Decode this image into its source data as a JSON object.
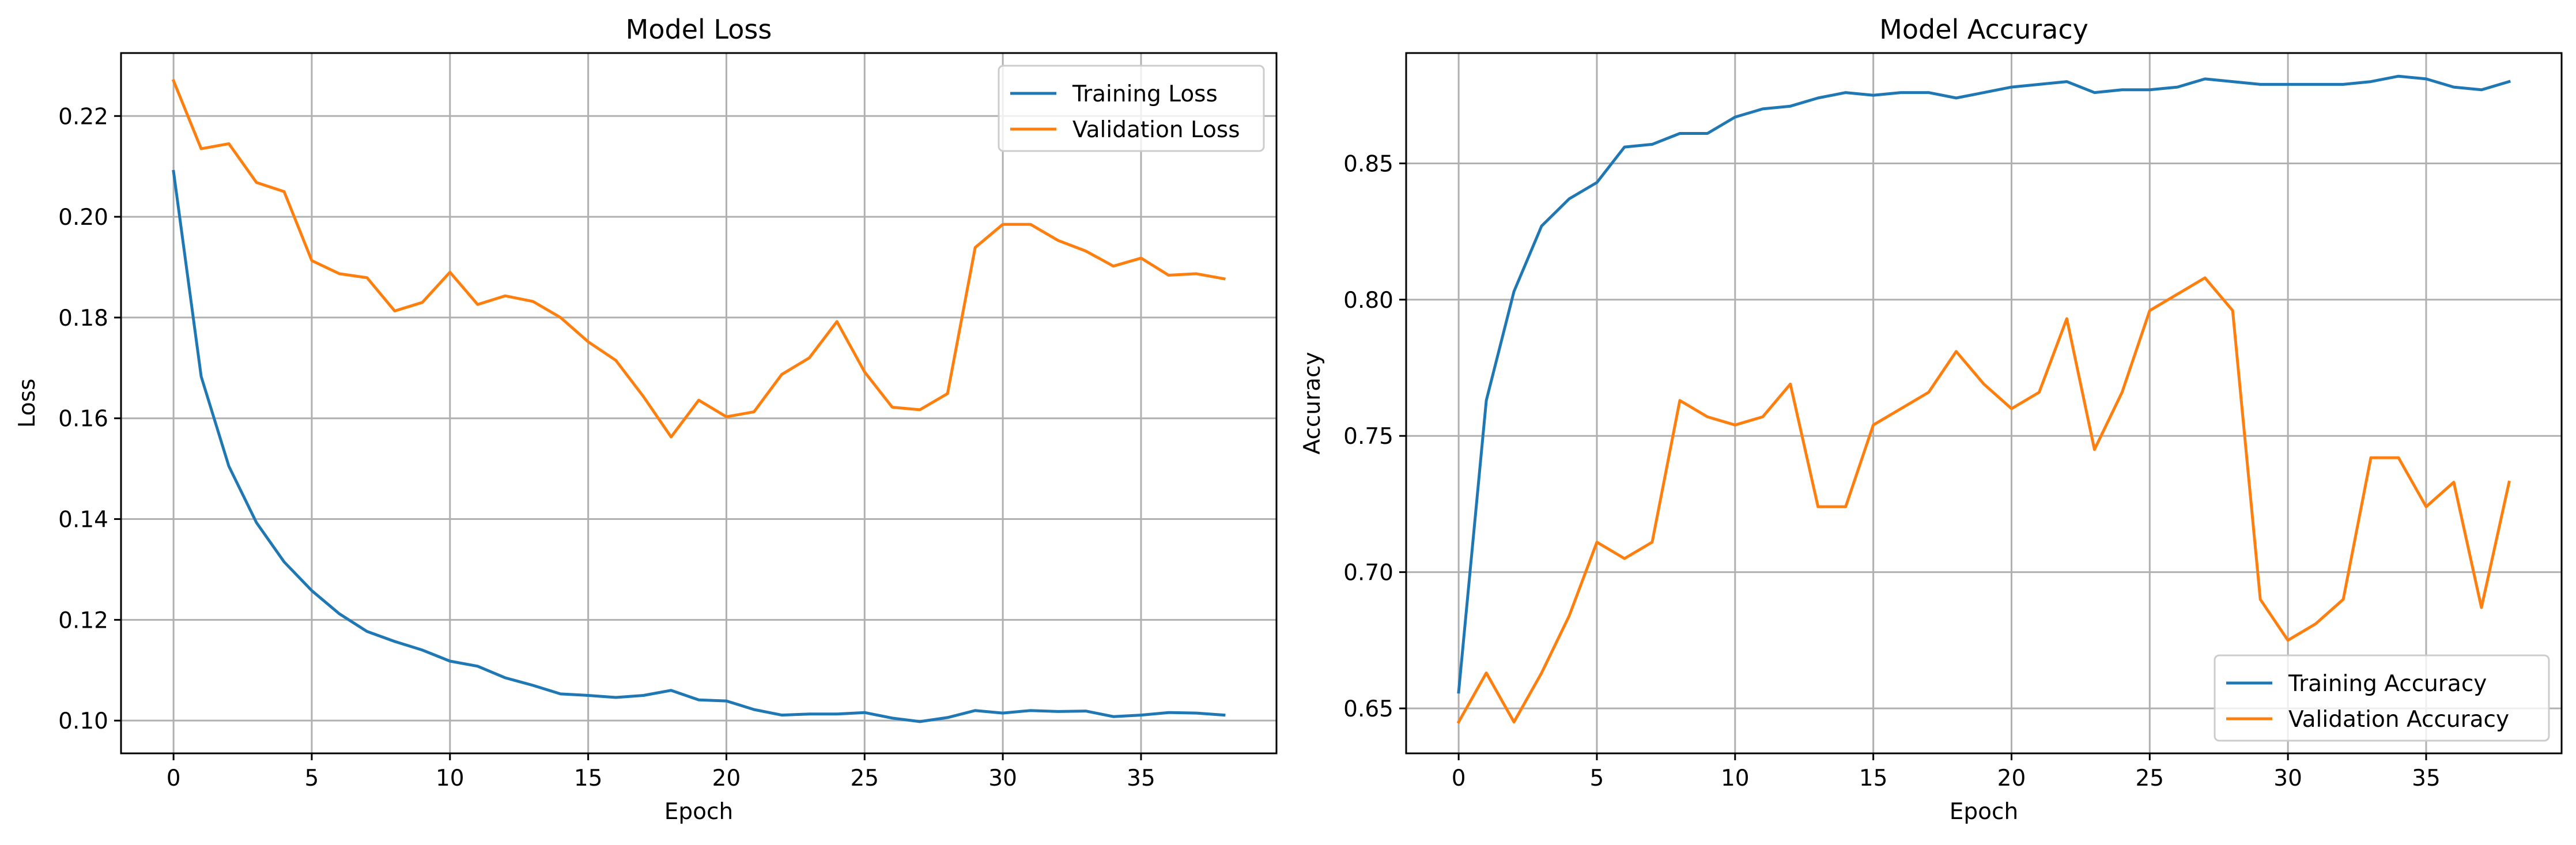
{
  "chart_data": [
    {
      "type": "line",
      "title": "Model Loss",
      "xlabel": "Epoch",
      "ylabel": "Loss",
      "xlim": [
        -1.9,
        39.9
      ],
      "ylim": [
        0.0935,
        0.2325
      ],
      "xticks": [
        0,
        5,
        10,
        15,
        20,
        25,
        30,
        35
      ],
      "yticks": [
        0.1,
        0.12,
        0.14,
        0.16,
        0.18,
        0.2,
        0.22
      ],
      "ytick_format": 2,
      "grid": true,
      "legend_position": "upper right",
      "x": [
        0,
        1,
        2,
        3,
        4,
        5,
        6,
        7,
        8,
        9,
        10,
        11,
        12,
        13,
        14,
        15,
        16,
        17,
        18,
        19,
        20,
        21,
        22,
        23,
        24,
        25,
        26,
        27,
        28,
        29,
        30,
        31,
        32,
        33,
        34,
        35,
        36,
        37,
        38
      ],
      "series": [
        {
          "name": "Training Loss",
          "color": "#1f77b4",
          "values": [
            0.209,
            0.1683,
            0.1505,
            0.1393,
            0.1315,
            0.1258,
            0.1212,
            0.1177,
            0.1157,
            0.114,
            0.1118,
            0.1108,
            0.1085,
            0.107,
            0.1053,
            0.105,
            0.1046,
            0.105,
            0.106,
            0.1041,
            0.1039,
            0.1022,
            0.1011,
            0.1013,
            0.1013,
            0.1016,
            0.1005,
            0.0998,
            0.1006,
            0.102,
            0.1015,
            0.102,
            0.1018,
            0.1019,
            0.1008,
            0.1011,
            0.1016,
            0.1015,
            0.1011
          ]
        },
        {
          "name": "Validation Loss",
          "color": "#ff7f0e",
          "values": [
            0.227,
            0.2135,
            0.2145,
            0.2068,
            0.205,
            0.1913,
            0.1887,
            0.1879,
            0.1813,
            0.183,
            0.189,
            0.1826,
            0.1843,
            0.1832,
            0.18,
            0.1752,
            0.1715,
            0.1643,
            0.1563,
            0.1636,
            0.1603,
            0.1613,
            0.1687,
            0.172,
            0.1792,
            0.1692,
            0.1622,
            0.1617,
            0.1649,
            0.1939,
            0.1985,
            0.1985,
            0.1953,
            0.1932,
            0.1902,
            0.1918,
            0.1884,
            0.1887,
            0.1877
          ]
        }
      ]
    },
    {
      "type": "line",
      "title": "Model Accuracy",
      "xlabel": "Epoch",
      "ylabel": "Accuracy",
      "xlim": [
        -1.9,
        39.9
      ],
      "ylim": [
        0.6335,
        0.8905
      ],
      "xticks": [
        0,
        5,
        10,
        15,
        20,
        25,
        30,
        35
      ],
      "yticks": [
        0.65,
        0.7,
        0.75,
        0.8,
        0.85
      ],
      "ytick_format": 2,
      "grid": true,
      "legend_position": "lower right",
      "x": [
        0,
        1,
        2,
        3,
        4,
        5,
        6,
        7,
        8,
        9,
        10,
        11,
        12,
        13,
        14,
        15,
        16,
        17,
        18,
        19,
        20,
        21,
        22,
        23,
        24,
        25,
        26,
        27,
        28,
        29,
        30,
        31,
        32,
        33,
        34,
        35,
        36,
        37,
        38
      ],
      "series": [
        {
          "name": "Training Accuracy",
          "color": "#1f77b4",
          "values": [
            0.656,
            0.763,
            0.803,
            0.827,
            0.837,
            0.843,
            0.856,
            0.857,
            0.861,
            0.861,
            0.867,
            0.87,
            0.871,
            0.874,
            0.876,
            0.875,
            0.876,
            0.876,
            0.874,
            0.876,
            0.878,
            0.879,
            0.88,
            0.876,
            0.877,
            0.877,
            0.878,
            0.881,
            0.88,
            0.879,
            0.879,
            0.879,
            0.879,
            0.88,
            0.882,
            0.881,
            0.878,
            0.877,
            0.88
          ]
        },
        {
          "name": "Validation Accuracy",
          "color": "#ff7f0e",
          "values": [
            0.645,
            0.663,
            0.645,
            0.663,
            0.684,
            0.711,
            0.705,
            0.711,
            0.763,
            0.757,
            0.754,
            0.757,
            0.769,
            0.724,
            0.724,
            0.754,
            0.76,
            0.766,
            0.781,
            0.769,
            0.76,
            0.766,
            0.793,
            0.745,
            0.766,
            0.796,
            0.802,
            0.808,
            0.796,
            0.69,
            0.675,
            0.681,
            0.69,
            0.742,
            0.742,
            0.724,
            0.733,
            0.687,
            0.733
          ]
        }
      ]
    }
  ]
}
